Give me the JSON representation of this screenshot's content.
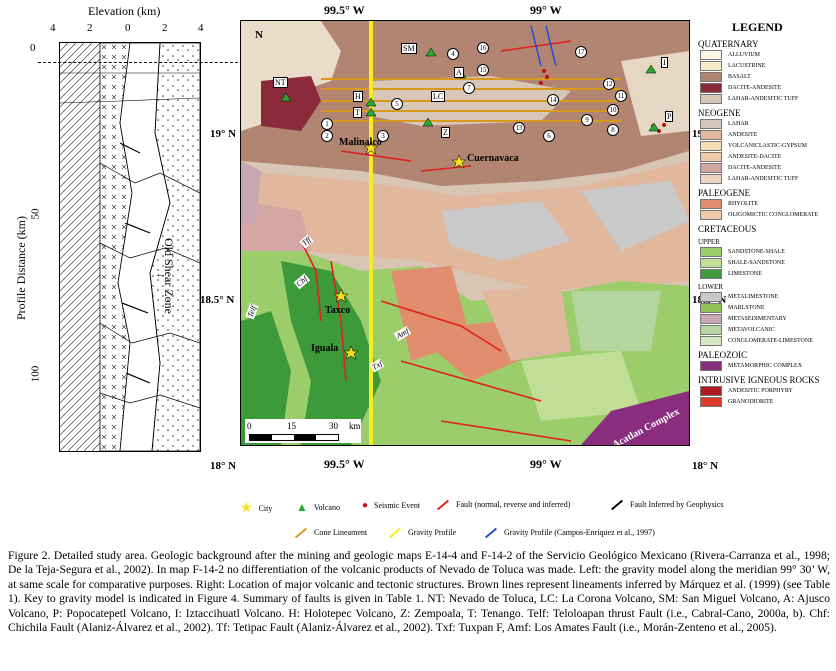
{
  "profile": {
    "title": "Elevation (km)",
    "elevation_ticks": [
      "4",
      "2",
      "0",
      "2",
      "4"
    ],
    "axis_label": "Profile Distance (km)",
    "y_ticks": [
      "0",
      "50",
      "100"
    ],
    "shear_label": "Old Shear Zone"
  },
  "map": {
    "lon_top": [
      "99.5° W",
      "99° W"
    ],
    "lon_bottom": [
      "99.5° W",
      "99° W"
    ],
    "lat_left": [
      "19° N",
      "18.5° N",
      "18° N"
    ],
    "lat_right": [
      "19° N",
      "18.5° N",
      "18° N"
    ],
    "north": "N",
    "cities": [
      "Malinalco",
      "Cuernavaca",
      "Taxco",
      "Iguala"
    ],
    "volcano_labels": [
      "NT",
      "SM",
      "LC",
      "H",
      "T",
      "A",
      "Z",
      "P",
      "I"
    ],
    "fault_labels": [
      "Tff",
      "Chf",
      "Telf",
      "Amf",
      "Txf"
    ],
    "numbers": [
      "1",
      "2",
      "3",
      "4",
      "5",
      "6",
      "7",
      "8",
      "9",
      "10",
      "11",
      "12",
      "13",
      "14",
      "15",
      "16",
      "17"
    ],
    "complex_label": "Acatlan Complex",
    "scale": [
      "0",
      "15",
      "30",
      "km"
    ]
  },
  "legend": {
    "title": "LEGEND",
    "sections": [
      {
        "name": "QUATERNARY",
        "items": [
          {
            "label": "ALLUVIUM",
            "color": "#fbf7e6"
          },
          {
            "label": "LACUSTRINE",
            "color": "#f6ecc4"
          },
          {
            "label": "BASALT",
            "color": "#b28573"
          },
          {
            "label": "DACITE-ANDESITE",
            "color": "#8b2a3a"
          },
          {
            "label": "LAHAR-ANDESITIC TUFF",
            "color": "#d8c6b6"
          }
        ]
      },
      {
        "name": "NEOGENE",
        "items": [
          {
            "label": "LAHAR",
            "color": "#d3c6bd"
          },
          {
            "label": "ANDESITE",
            "color": "#e1b79e"
          },
          {
            "label": "VOLCANICLASTIC-GYPSUM",
            "color": "#f3dcb4"
          },
          {
            "label": "ANDESITE-DACITE",
            "color": "#efc9a8"
          },
          {
            "label": "DACITE-ANDESITE",
            "color": "#d4a7a2"
          },
          {
            "label": "LAHAR-ANDESITIC TUFF",
            "color": "#ecd5c2"
          }
        ]
      },
      {
        "name": "PALEOGENE",
        "items": [
          {
            "label": "RHYOLITE",
            "color": "#e18e6f"
          },
          {
            "label": "OLIGOMICTIC CONGLOMERATE",
            "color": "#f1c9a7"
          }
        ]
      },
      {
        "name": "CRETACEOUS",
        "sub": "UPPER",
        "items": [
          {
            "label": "SANDSTONE-SHALE",
            "color": "#9ccd6b"
          },
          {
            "label": "SHALE-SANDSTONE",
            "color": "#c0de96"
          },
          {
            "label": "LIMESTONE",
            "color": "#3d9a3b"
          }
        ]
      },
      {
        "name": "",
        "sub": "LOWER",
        "items": [
          {
            "label": "METALIMESTONE",
            "color": "#c9c9c9"
          },
          {
            "label": "MARLSTONE",
            "color": "#8fbf57"
          },
          {
            "label": "METASEDIMENTARY",
            "color": "#c9a6b4"
          },
          {
            "label": "METAVOLCANIC",
            "color": "#b4d59e"
          },
          {
            "label": "CONGLOMERATE-LIMESTONE",
            "color": "#d7e7c3"
          }
        ]
      },
      {
        "name": "PALEOZOIC",
        "items": [
          {
            "label": "METAMORPHIC COMPLEX",
            "color": "#8b2d7f"
          }
        ]
      },
      {
        "name": "INTRUSIVE IGNEOUS ROCKS",
        "items": [
          {
            "label": "ANDESITIC PORPHYRY",
            "color": "#b01a22"
          },
          {
            "label": "GRANODIORITE",
            "color": "#e23a2a"
          }
        ]
      }
    ]
  },
  "key": {
    "city": "City",
    "volcano": "Volcano",
    "seismic": "Seismic Event",
    "fault": "Fault (normal, reverse and inferred)",
    "fault_geo": "Fault Inferred by Geophysics",
    "cone": "Cone Lineament",
    "gravity": "Gravity Profile",
    "gravity_ce": "Gravity Profile (Campos-Enríquez et al., 1997)"
  },
  "caption": "Figure 2. Detailed study area. Geologic background after the mining and geologic maps E-14-4 and F-14-2 of the Servicio Geológico Mexicano (Rivera-Carranza et al., 1998; De la Teja-Segura et al., 2002). In map F-14-2 no differentiation of the volcanic products of Nevado de Toluca was made. Left: the gravity model along the meridian 99° 30’ W, at same scale for comparative purposes. Right: Location of major volcanic and tectonic structures. Brown lines represent lineaments inferred by Márquez et al. (1999) (see Table 1). Key to gravity model is indicated in Figure 4. Summary of faults is given in Table 1. NT: Nevado de Toluca, LC: La Corona Volcano, SM: San Miguel Volcano, A: Ajusco Volcano, P: Popocatepetl Volcano, I: Iztaccihuatl Volcano. H: Holotepec Volcano, Z: Zempoala, T: Tenango. Telf: Teloloapan thrust Fault (i.e., Cabral-Cano, 2000a, b). Chf: Chichila Fault (Alaniz-Álvarez et al., 2002). Tf: Tetipac Fault (Alaniz-Álvarez et al., 2002). Txf: Tuxpan F, Amf: Los Amates Fault (i.e., Morán-Zenteno et al., 2005)."
}
